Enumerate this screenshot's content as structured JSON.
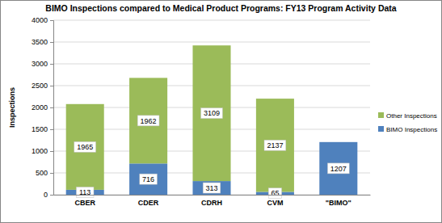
{
  "chart_data": {
    "type": "bar",
    "title": "BIMO Inspections compared to Medical Product Programs: FY13 Program Activity Data",
    "y_label": "Inspections",
    "categories": [
      "CBER",
      "CDER",
      "CDRH",
      "CVM",
      "\"BIMO\""
    ],
    "series": [
      {
        "name": "BIMO Inspections",
        "color": "#4f81bd",
        "values": [
          113,
          716,
          313,
          65,
          1207
        ]
      },
      {
        "name": "Other Inspections",
        "color": "#9bbb59",
        "values": [
          1965,
          1962,
          3109,
          2137,
          null
        ]
      }
    ],
    "ylim": [
      0,
      4000
    ],
    "yticks": [
      0,
      500,
      1000,
      1500,
      2000,
      2500,
      3000,
      3500,
      4000
    ],
    "stacked": true,
    "grid": true,
    "legend": "right",
    "data_labels": true
  }
}
